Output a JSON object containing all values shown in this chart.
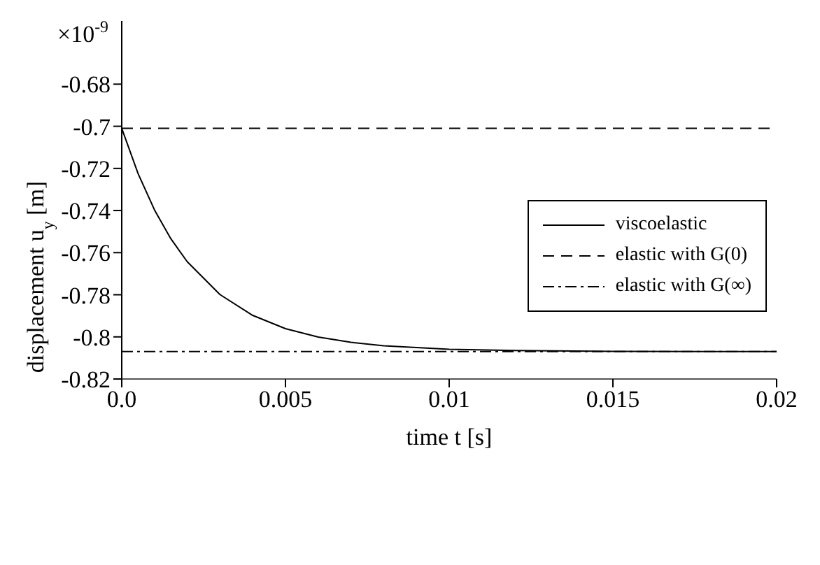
{
  "chart_data": {
    "type": "line",
    "xlabel": "time t [s]",
    "ylabel": "displacement u$_{y}$ [m]",
    "annotations": [
      "×10$^{-9}$"
    ],
    "xlim": [
      0,
      0.02
    ],
    "xticks": [
      {
        "value": 0,
        "label": "0.0"
      },
      0.005,
      0.01,
      0.015,
      0.02
    ],
    "ylim": [
      -0.82,
      -0.65
    ],
    "yticks": [
      -0.82,
      -0.8,
      -0.78,
      -0.76,
      -0.74,
      -0.72,
      -0.7,
      -0.68
    ],
    "grid": false,
    "legend": "right",
    "marker": "none",
    "series": [
      {
        "name": "viscoelastic",
        "color": "#000000",
        "line_style": "solid",
        "x": [
          0,
          0,
          0.0005,
          0.001,
          0.0015,
          0.002,
          0.003,
          0.004,
          0.005,
          0.006,
          0.007,
          0.008,
          0.01,
          0.012,
          0.015,
          0.02
        ],
        "values": [
          -0.67,
          -0.701,
          -0.7225,
          -0.7397,
          -0.7534,
          -0.7643,
          -0.7799,
          -0.7898,
          -0.7961,
          -0.8001,
          -0.8026,
          -0.8042,
          -0.8059,
          -0.8065,
          -0.8069,
          -0.807
        ]
      },
      {
        "name": "elastic with G(0)",
        "color": "#000000",
        "line_style": "dashed",
        "x": [
          0,
          0.02
        ],
        "values": [
          -0.701,
          -0.701
        ]
      },
      {
        "name": "elastic with G(∞)",
        "color": "#000000",
        "line_style": "dashdot",
        "x": [
          0,
          0.02
        ],
        "values": [
          -0.807,
          -0.807
        ]
      }
    ]
  }
}
